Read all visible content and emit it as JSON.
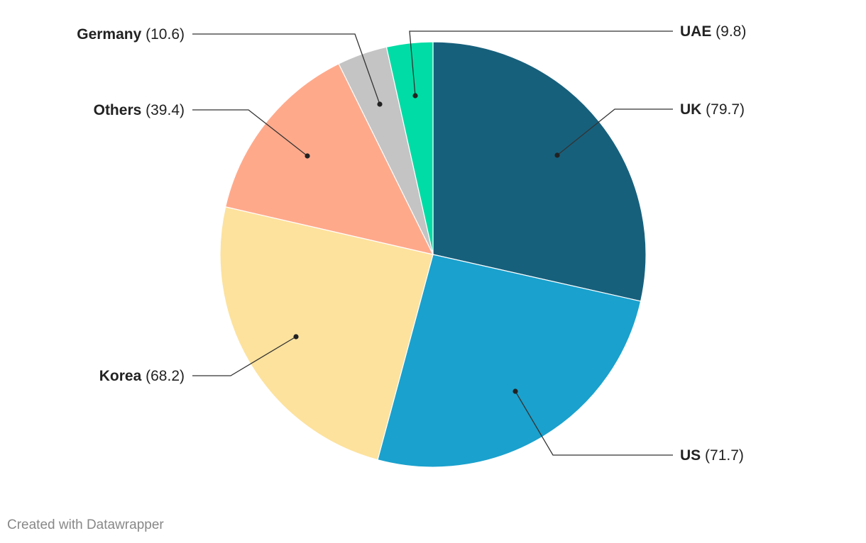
{
  "chart_data": {
    "type": "pie",
    "title": "",
    "slices": [
      {
        "name": "UK",
        "value": 79.7,
        "color": "#17607c"
      },
      {
        "name": "US",
        "value": 71.7,
        "color": "#1aa1cd"
      },
      {
        "name": "Korea",
        "value": 68.2,
        "color": "#fde29d"
      },
      {
        "name": "Others",
        "value": 39.4,
        "color": "#ffa98b"
      },
      {
        "name": "Germany",
        "value": 10.6,
        "color": "#c4c4c4"
      },
      {
        "name": "UAE",
        "value": 9.8,
        "color": "#00dca5"
      }
    ]
  },
  "footer": {
    "credit": "Created with Datawrapper"
  }
}
